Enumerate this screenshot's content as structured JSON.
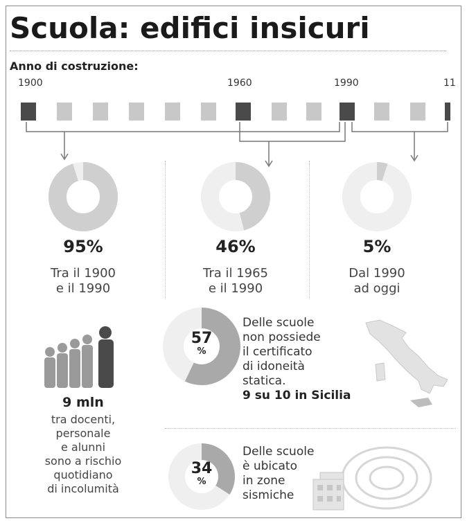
{
  "title": "Scuola: edifici insicuri",
  "subtitle": "Anno di costruzione:",
  "timeline": {
    "year_labels": [
      "1900",
      "1960",
      "1990",
      "11"
    ]
  },
  "colors": {
    "dark": "#4a4a4a",
    "light": "#c8c8c8",
    "donut_fill": "#cfcfcf",
    "donut_empty": "#efefef",
    "donut_fill_dark": "#a9a9a9"
  },
  "chart_data": [
    {
      "type": "pie",
      "subtype": "donut",
      "categories": [
        "Tra il 1900 e il 1990",
        "Tra il 1965 e il 1990",
        "Dal 1990 ad oggi"
      ],
      "values": [
        95,
        46,
        5
      ],
      "unit": "%",
      "labels": [
        "95%",
        "46%",
        "5%"
      ],
      "captions": [
        {
          "line1": "Tra il 1900",
          "line2": "e il 1990"
        },
        {
          "line1": "Tra il 1965",
          "line2": "e il 1990"
        },
        {
          "line1": "Dal 1990",
          "line2": "ad oggi"
        }
      ]
    },
    {
      "type": "pie",
      "subtype": "donut",
      "values": [
        57
      ],
      "unit": "%",
      "label_num": "57",
      "label_unit": "%",
      "text_lines": [
        "Delle scuole",
        "non possiede",
        "il certificato",
        "di idoneità",
        "statica."
      ],
      "highlight": "9 su 10 in Sicilia"
    },
    {
      "type": "pie",
      "subtype": "donut",
      "values": [
        34
      ],
      "unit": "%",
      "label_num": "34",
      "label_unit": "%",
      "text_lines": [
        "Delle scuole",
        "è ubicato",
        "in zone",
        "sismiche"
      ]
    }
  ],
  "people": {
    "headline": "9 mln",
    "lines": [
      "tra docenti,",
      "personale",
      "e alunni",
      "sono a rischio",
      "quotidiano",
      "di incolumità"
    ]
  }
}
